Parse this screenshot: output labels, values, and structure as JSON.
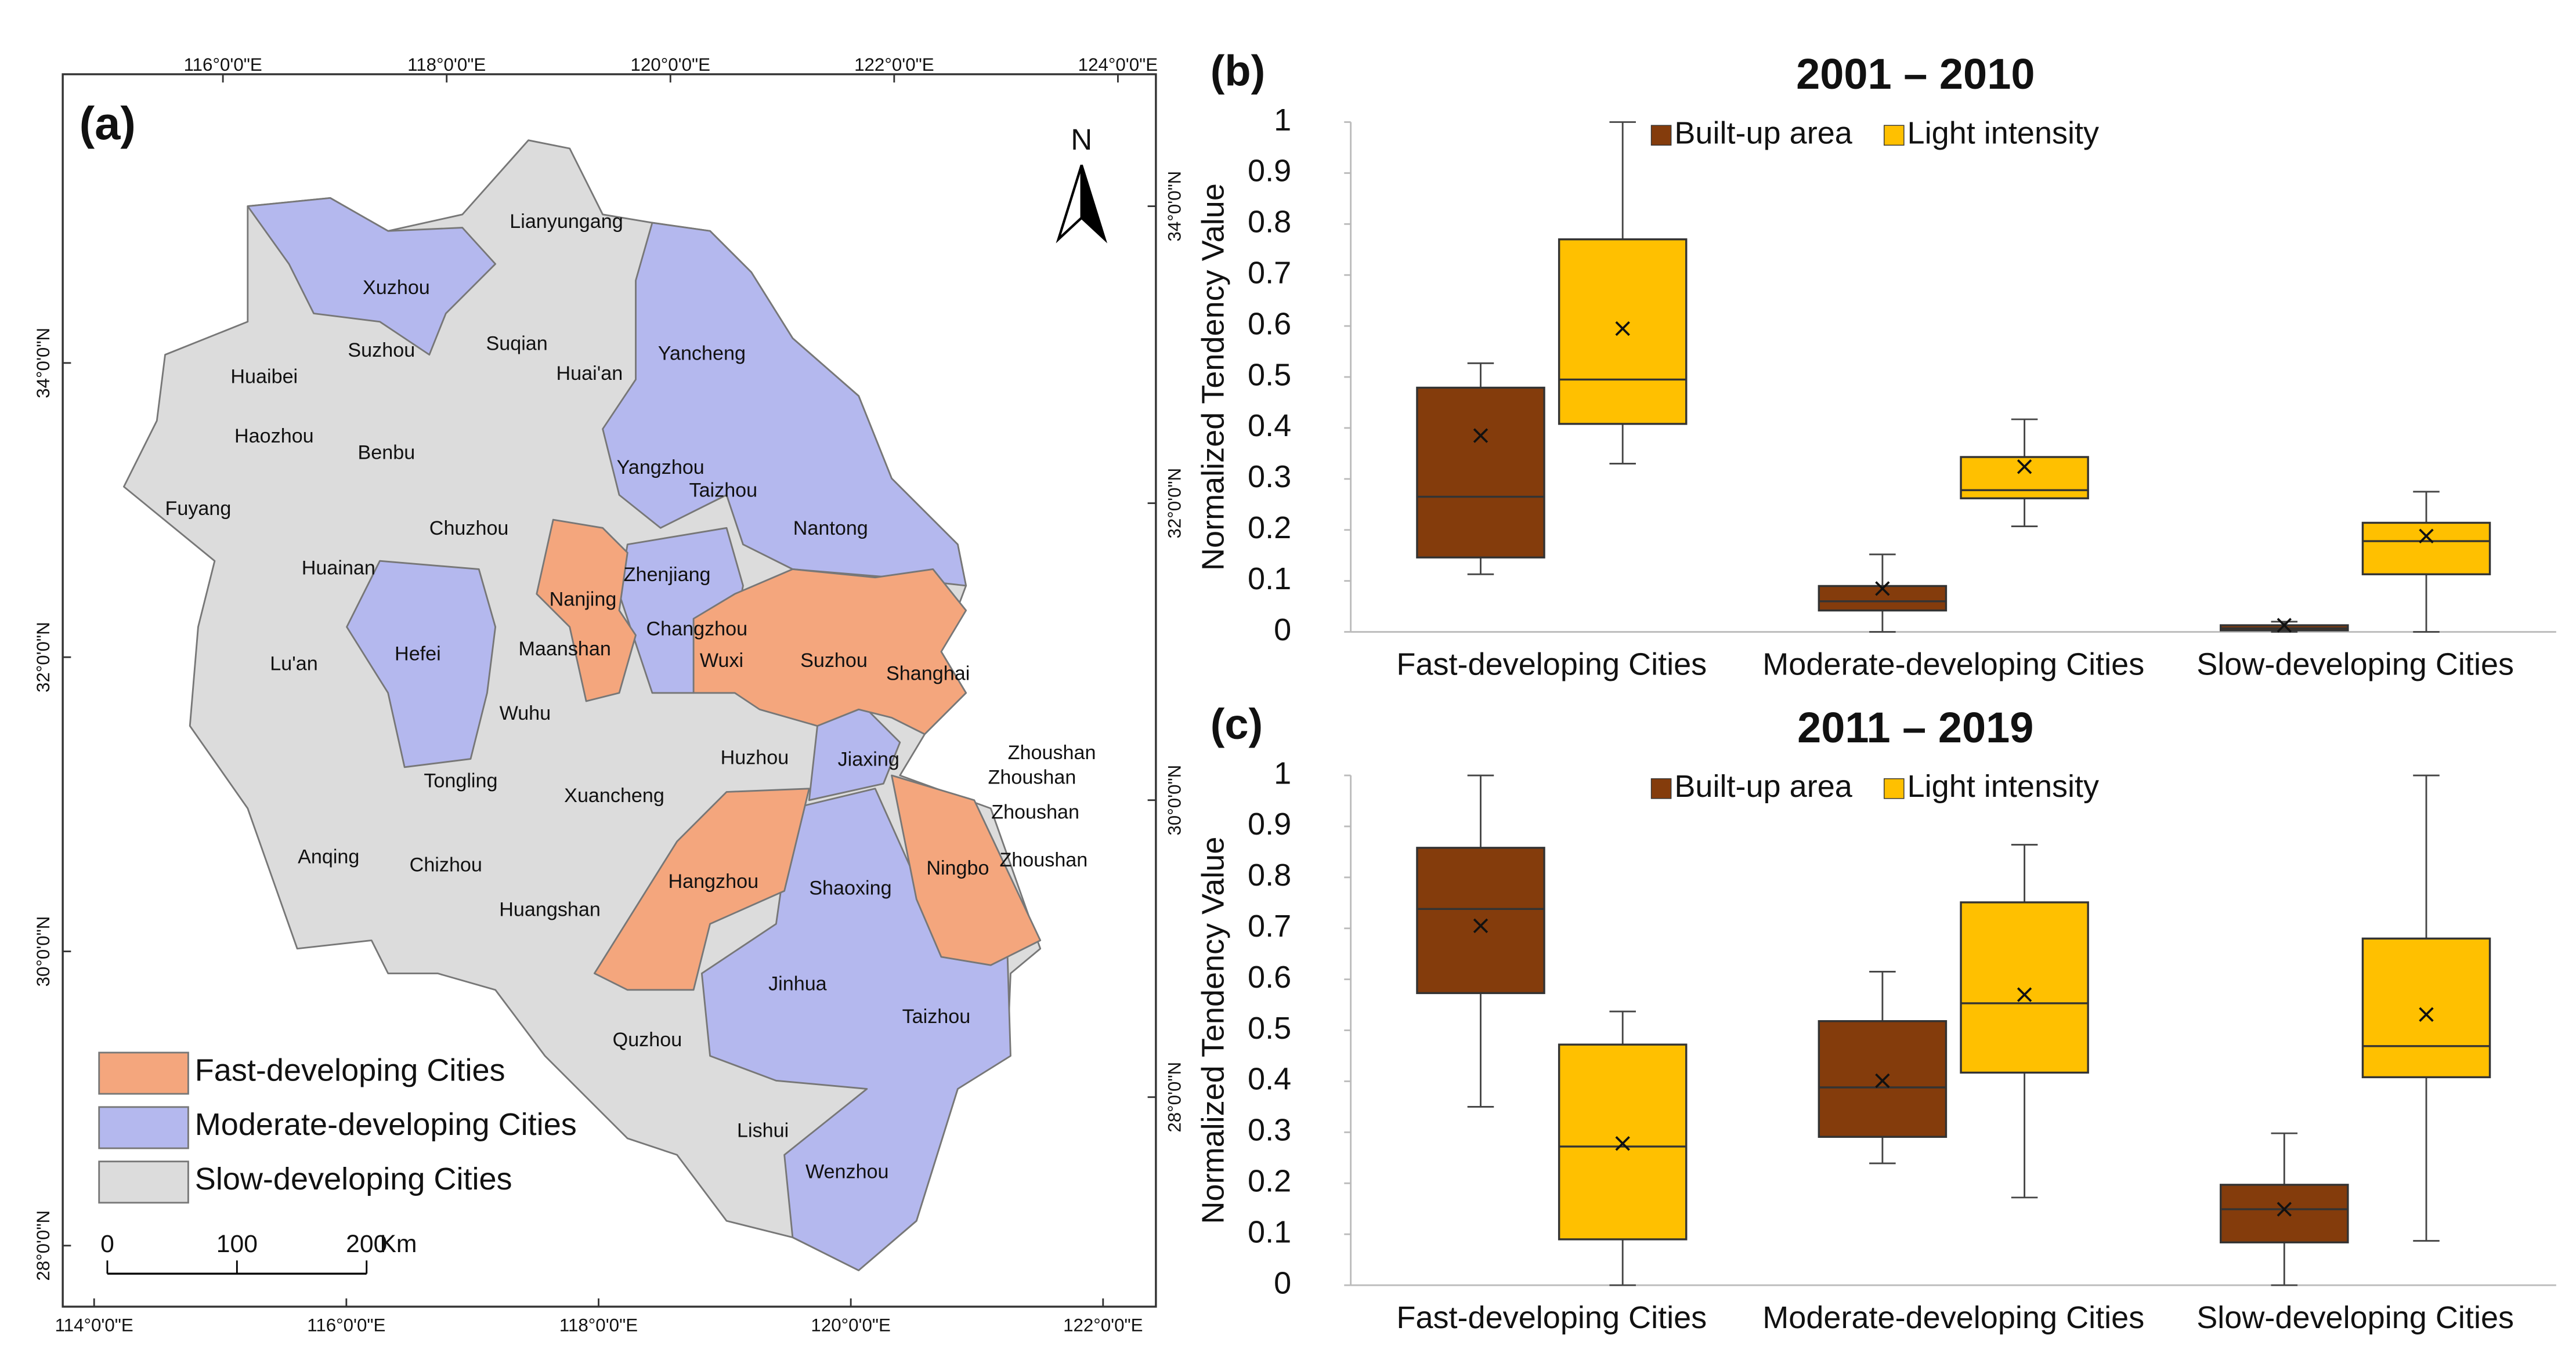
{
  "chart_data": [
    {
      "type": "map",
      "label": "(a)",
      "north": "N",
      "top_ticks": [
        {
          "value": 116,
          "label": "116°0'0\"E"
        },
        {
          "value": 118,
          "label": "118°0'0\"E"
        },
        {
          "value": 120,
          "label": "120°0'0\"E"
        },
        {
          "value": 122,
          "label": "122°0'0\"E"
        },
        {
          "value": 124,
          "label": "124°0'0\"E"
        }
      ],
      "bottom_ticks": [
        {
          "value": 114,
          "label": "114°0'0\"E"
        },
        {
          "value": 116,
          "label": "116°0'0\"E"
        },
        {
          "value": 118,
          "label": "118°0'0\"E"
        },
        {
          "value": 120,
          "label": "120°0'0\"E"
        },
        {
          "value": 122,
          "label": "122°0'0\"E"
        }
      ],
      "left_ticks": [
        {
          "value": 34,
          "label": "34°0'0\"N"
        },
        {
          "value": 32,
          "label": "32°0'0\"N"
        },
        {
          "value": 30,
          "label": "30°0'0\"N"
        },
        {
          "value": 28,
          "label": "28°0'0\"N"
        }
      ],
      "right_ticks": [
        {
          "value": 34,
          "label": "34°0'0\"N"
        },
        {
          "value": 32,
          "label": "32°0'0\"N"
        },
        {
          "value": 30,
          "label": "30°0'0\"N"
        },
        {
          "value": 28,
          "label": "28°0'0\"N"
        }
      ],
      "scale_bar": {
        "ticks": [
          0,
          100,
          200
        ],
        "unit": "Km"
      },
      "groups": [
        {
          "name": "Fast-developing Cities",
          "color": "#f4a67d",
          "cities": [
            "Nanjing",
            "Wuxi",
            "Suzhou",
            "Shanghai",
            "Hangzhou",
            "Ningbo"
          ]
        },
        {
          "name": "Moderate-developing Cities",
          "color": "#b4b8ee",
          "cities": [
            "Xuzhou",
            "Yancheng",
            "Yangzhou",
            "Taizhou",
            "Nantong",
            "Zhenjiang",
            "Changzhou",
            "Hefei",
            "Jiaxing",
            "Shaoxing",
            "Jinhua",
            "Taizhou",
            "Wenzhou"
          ]
        },
        {
          "name": "Slow-developing Cities",
          "color": "#dcdcdc",
          "cities": [
            "Lianyungang",
            "Suzhou",
            "Suqian",
            "Huaibei",
            "Huai'an",
            "Haozhou",
            "Benbu",
            "Fuyang",
            "Chuzhou",
            "Huainan",
            "Maanshan",
            "Lu'an",
            "Wuhu",
            "Tongling",
            "Xuancheng",
            "Huzhou",
            "Anqing",
            "Chizhou",
            "Huangshan",
            "Quzhou",
            "Lishui",
            "Zhoushan",
            "Zhoushan",
            "Zhoushan",
            "Zhoushan"
          ]
        }
      ]
    },
    {
      "type": "box",
      "label": "(b)",
      "title": "2001 – 2010",
      "ylabel": "Normalized Tendency Value",
      "categories": [
        "Fast-developing Cities",
        "Moderate-developing Cities",
        "Slow-developing Cities"
      ],
      "ylim": [
        0,
        1
      ],
      "yticks": [
        0,
        0.1,
        0.2,
        0.3,
        0.4,
        0.5,
        0.6,
        0.7,
        0.8,
        0.9,
        1
      ],
      "series": [
        {
          "name": "Built-up area",
          "color": "#843c0c",
          "min": [
            0.113,
            0,
            0
          ],
          "q1": [
            0.146,
            0.042,
            0.003
          ],
          "median": [
            0.265,
            0.06,
            0.007
          ],
          "q3": [
            0.479,
            0.09,
            0.013
          ],
          "max": [
            0.527,
            0.152,
            0.02
          ],
          "mean": [
            0.385,
            0.085,
            0.013
          ]
        },
        {
          "name": "Light intensity",
          "color": "#ffc000",
          "min": [
            0.33,
            0.207,
            0
          ],
          "q1": [
            0.408,
            0.262,
            0.113
          ],
          "median": [
            0.495,
            0.278,
            0.178
          ],
          "q3": [
            0.77,
            0.343,
            0.214
          ],
          "max": [
            1.0,
            0.417,
            0.275
          ],
          "mean": [
            0.595,
            0.324,
            0.188
          ]
        }
      ]
    },
    {
      "type": "box",
      "label": "(c)",
      "title": "2011 – 2019",
      "ylabel": "Normalized Tendency Value",
      "categories": [
        "Fast-developing Cities",
        "Moderate-developing Cities",
        "Slow-developing Cities"
      ],
      "ylim": [
        0,
        1
      ],
      "yticks": [
        0,
        0.1,
        0.2,
        0.3,
        0.4,
        0.5,
        0.6,
        0.7,
        0.8,
        0.9,
        1
      ],
      "series": [
        {
          "name": "Built-up area",
          "color": "#843c0c",
          "min": [
            0.35,
            0.239,
            0
          ],
          "q1": [
            0.573,
            0.291,
            0.084
          ],
          "median": [
            0.738,
            0.388,
            0.149
          ],
          "q3": [
            0.858,
            0.518,
            0.197
          ],
          "max": [
            1.0,
            0.615,
            0.298
          ],
          "mean": [
            0.705,
            0.401,
            0.149
          ]
        },
        {
          "name": "Light intensity",
          "color": "#ffc000",
          "min": [
            0,
            0.172,
            0.087
          ],
          "q1": [
            0.09,
            0.417,
            0.408
          ],
          "median": [
            0.272,
            0.553,
            0.469
          ],
          "q3": [
            0.472,
            0.751,
            0.68
          ],
          "max": [
            0.537,
            0.864,
            1.0
          ],
          "mean": [
            0.278,
            0.57,
            0.531
          ]
        }
      ]
    }
  ]
}
